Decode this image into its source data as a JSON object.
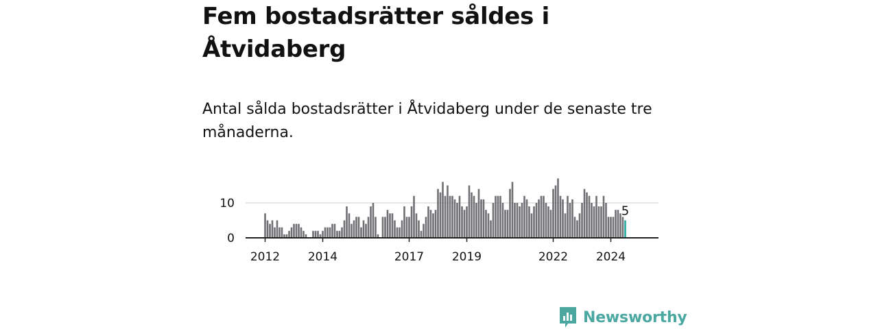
{
  "header": {
    "title": "Fem bostadsrätter såldes i Åtvidaberg",
    "subtitle": "Antal sålda bostadsrätter i Åtvidaberg under de senaste tre månaderna."
  },
  "brand": {
    "name": "Newsworthy",
    "color": "#4aa8a0"
  },
  "colors": {
    "bar": "#6f6f74",
    "highlight": "#27a6a0",
    "grid": "#dddddd",
    "axis": "#222222"
  },
  "chart_data": {
    "type": "bar",
    "x_ticks": [
      "2012",
      "2014",
      "2017",
      "2019",
      "2022",
      "2024"
    ],
    "y_ticks": [
      0,
      10
    ],
    "ylim": [
      0,
      17
    ],
    "grid": true,
    "highlight_label": "5",
    "start_period": "2012-01",
    "end_period": "2024-06",
    "values": [
      7,
      5,
      4,
      5,
      3,
      5,
      3,
      3,
      1,
      1,
      2,
      3,
      4,
      4,
      4,
      3,
      2,
      1,
      0,
      0,
      2,
      2,
      2,
      1,
      2,
      3,
      3,
      3,
      4,
      4,
      2,
      2,
      3,
      5,
      9,
      7,
      4,
      5,
      6,
      6,
      3,
      5,
      4,
      6,
      9,
      10,
      6,
      1,
      0,
      6,
      6,
      8,
      7,
      7,
      5,
      3,
      3,
      5,
      9,
      6,
      6,
      9,
      12,
      7,
      5,
      2,
      4,
      6,
      9,
      8,
      7,
      8,
      14,
      13,
      16,
      12,
      15,
      12,
      12,
      11,
      10,
      12,
      9,
      8,
      9,
      15,
      13,
      12,
      10,
      14,
      11,
      11,
      8,
      7,
      5,
      10,
      12,
      12,
      12,
      10,
      8,
      8,
      14,
      16,
      10,
      10,
      9,
      10,
      12,
      11,
      9,
      7,
      9,
      10,
      11,
      12,
      12,
      10,
      9,
      8,
      14,
      15,
      17,
      12,
      11,
      7,
      12,
      10,
      11,
      6,
      5,
      7,
      10,
      14,
      13,
      12,
      10,
      9,
      12,
      9,
      9,
      12,
      10,
      6,
      6,
      6,
      8,
      8,
      7,
      6,
      5
    ]
  }
}
